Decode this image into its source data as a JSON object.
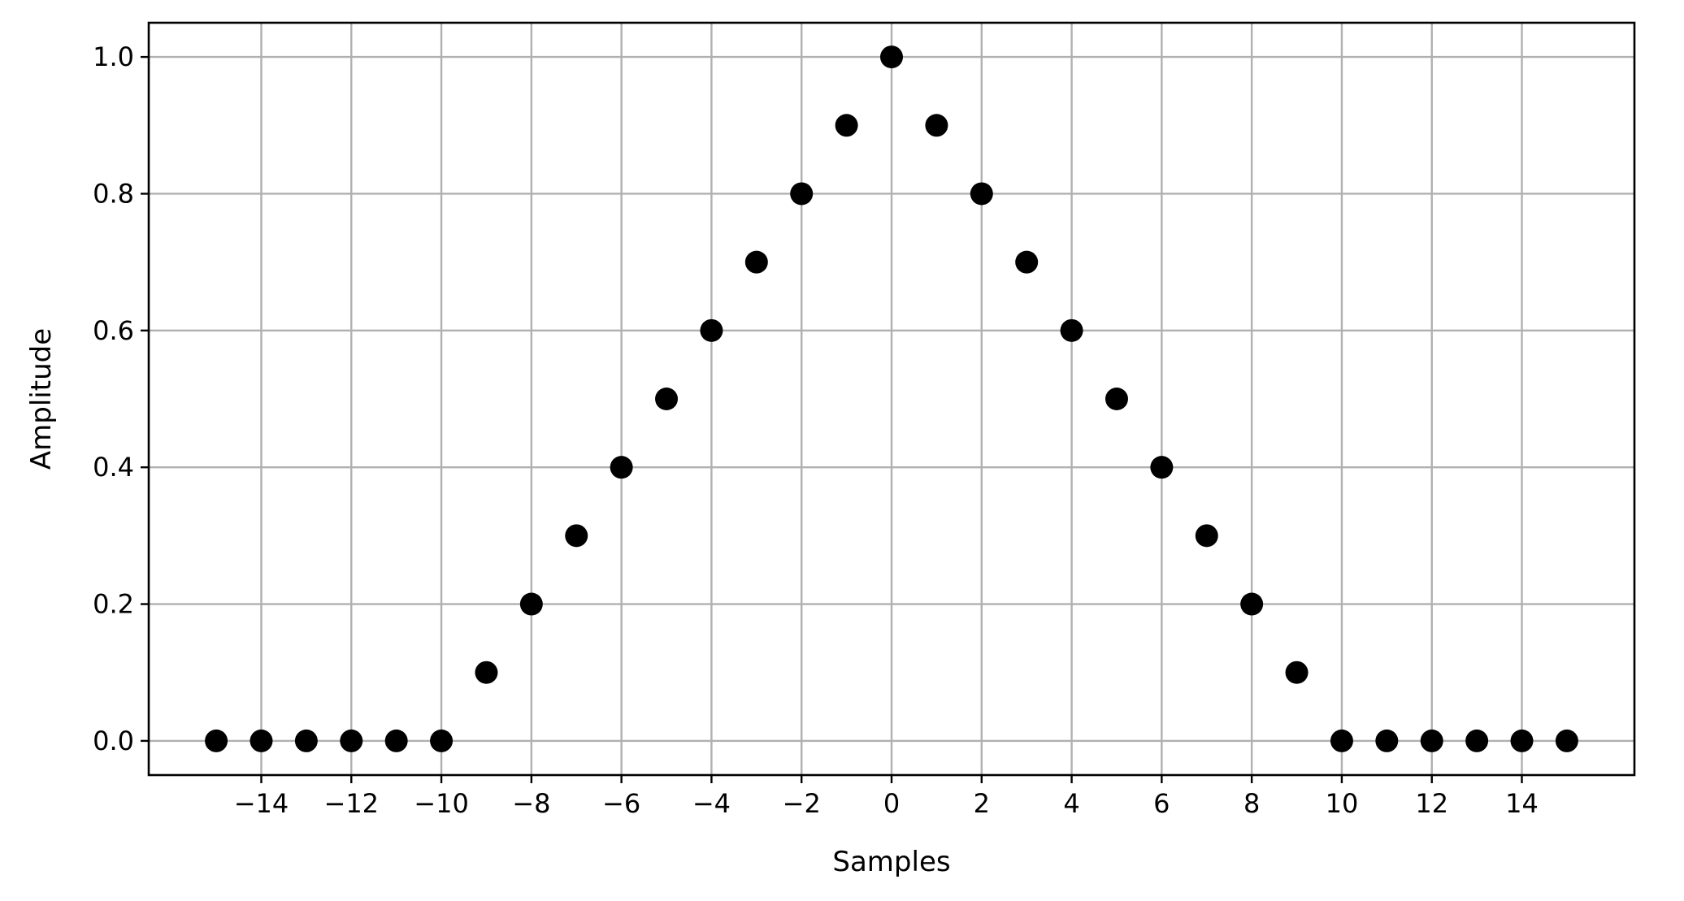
{
  "chart_data": {
    "type": "scatter",
    "title": "",
    "xlabel": "Samples",
    "ylabel": "Amplitude",
    "xlim": [
      -16.5,
      16.5
    ],
    "ylim": [
      -0.05,
      1.05
    ],
    "xticks": [
      -14,
      -12,
      -10,
      -8,
      -6,
      -4,
      -2,
      0,
      2,
      4,
      6,
      8,
      10,
      12,
      14
    ],
    "xtick_labels": [
      "−14",
      "−12",
      "−10",
      "−8",
      "−6",
      "−4",
      "−2",
      "0",
      "2",
      "4",
      "6",
      "8",
      "10",
      "12",
      "14"
    ],
    "yticks": [
      0.0,
      0.2,
      0.4,
      0.6,
      0.8,
      1.0
    ],
    "ytick_labels": [
      "0.0",
      "0.2",
      "0.4",
      "0.6",
      "0.8",
      "1.0"
    ],
    "grid": true,
    "marker_color": "#000000",
    "x": [
      -15,
      -14,
      -13,
      -12,
      -11,
      -10,
      -9,
      -8,
      -7,
      -6,
      -5,
      -4,
      -3,
      -2,
      -1,
      0,
      1,
      2,
      3,
      4,
      5,
      6,
      7,
      8,
      9,
      10,
      11,
      12,
      13,
      14,
      15
    ],
    "y": [
      0.0,
      0.0,
      0.0,
      0.0,
      0.0,
      0.0,
      0.1,
      0.2,
      0.3,
      0.4,
      0.5,
      0.6,
      0.7,
      0.8,
      0.9,
      1.0,
      0.9,
      0.8,
      0.7,
      0.6,
      0.5,
      0.4,
      0.3,
      0.2,
      0.1,
      0.0,
      0.0,
      0.0,
      0.0,
      0.0,
      0.0
    ]
  }
}
